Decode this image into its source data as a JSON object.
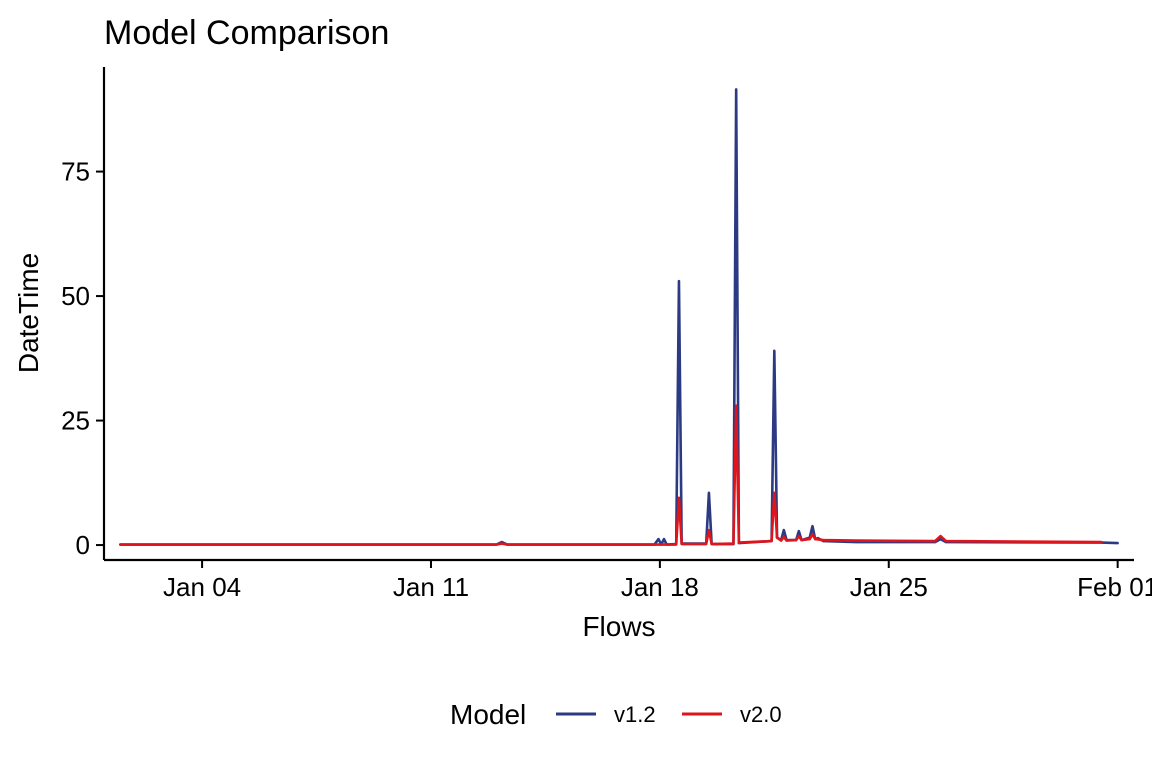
{
  "chart_data": {
    "type": "line",
    "title": "Model Comparison",
    "xlabel": "Flows",
    "ylabel": "DateTime",
    "x_axis_type": "date",
    "xlim": [
      "2024-01-01T00:00",
      "2024-02-01T12:00"
    ],
    "ylim": [
      -3,
      96
    ],
    "x_ticks": [
      {
        "value": "2024-01-04",
        "label": "Jan 04"
      },
      {
        "value": "2024-01-11",
        "label": "Jan 11"
      },
      {
        "value": "2024-01-18",
        "label": "Jan 18"
      },
      {
        "value": "2024-01-25",
        "label": "Jan 25"
      },
      {
        "value": "2024-02-01",
        "label": "Feb 01"
      }
    ],
    "y_ticks": [
      {
        "value": 0,
        "label": "0"
      },
      {
        "value": 25,
        "label": "25"
      },
      {
        "value": 50,
        "label": "50"
      },
      {
        "value": 75,
        "label": "75"
      }
    ],
    "grid": false,
    "legend": {
      "title": "Model",
      "placement": "bottom"
    },
    "series": [
      {
        "name": "v1.2",
        "color": "#2b3a83",
        "points": [
          [
            "2024-01-01T12:00",
            0.1
          ],
          [
            "2024-01-13T00:00",
            0.1
          ],
          [
            "2024-01-13T04:00",
            0.6
          ],
          [
            "2024-01-13T08:00",
            0.1
          ],
          [
            "2024-01-17T20:00",
            0.1
          ],
          [
            "2024-01-17T23:00",
            1.2
          ],
          [
            "2024-01-18T01:00",
            0.1
          ],
          [
            "2024-01-18T03:00",
            1.2
          ],
          [
            "2024-01-18T05:00",
            0.1
          ],
          [
            "2024-01-18T12:00",
            0.2
          ],
          [
            "2024-01-18T14:00",
            53
          ],
          [
            "2024-01-18T16:00",
            0.3
          ],
          [
            "2024-01-19T10:00",
            0.3
          ],
          [
            "2024-01-19T12:00",
            10.5
          ],
          [
            "2024-01-19T14:00",
            0.2
          ],
          [
            "2024-01-20T06:00",
            0.2
          ],
          [
            "2024-01-20T08:00",
            91.5
          ],
          [
            "2024-01-20T10:00",
            0.4
          ],
          [
            "2024-01-21T10:00",
            0.8
          ],
          [
            "2024-01-21T12:00",
            39
          ],
          [
            "2024-01-21T14:00",
            1.5
          ],
          [
            "2024-01-21T17:00",
            1.0
          ],
          [
            "2024-01-21T19:00",
            3.0
          ],
          [
            "2024-01-21T21:00",
            1.0
          ],
          [
            "2024-01-22T04:00",
            1.0
          ],
          [
            "2024-01-22T06:00",
            2.8
          ],
          [
            "2024-01-22T08:00",
            1.0
          ],
          [
            "2024-01-22T14:00",
            1.5
          ],
          [
            "2024-01-22T16:00",
            3.8
          ],
          [
            "2024-01-22T18:00",
            1.2
          ],
          [
            "2024-01-22T20:00",
            1.4
          ],
          [
            "2024-01-23T00:00",
            0.8
          ],
          [
            "2024-01-24T00:00",
            0.6
          ],
          [
            "2024-01-26T10:00",
            0.6
          ],
          [
            "2024-01-26T14:00",
            1.2
          ],
          [
            "2024-01-26T18:00",
            0.6
          ],
          [
            "2024-01-31T12:00",
            0.5
          ],
          [
            "2024-02-01T00:00",
            0.4
          ]
        ]
      },
      {
        "name": "v2.0",
        "color": "#e0151c",
        "points": [
          [
            "2024-01-01T12:00",
            0.1
          ],
          [
            "2024-01-13T00:00",
            0.1
          ],
          [
            "2024-01-13T04:00",
            0.3
          ],
          [
            "2024-01-13T08:00",
            0.1
          ],
          [
            "2024-01-18T12:00",
            0.1
          ],
          [
            "2024-01-18T14:00",
            9.5
          ],
          [
            "2024-01-18T16:00",
            0.2
          ],
          [
            "2024-01-19T10:00",
            0.2
          ],
          [
            "2024-01-19T12:00",
            3
          ],
          [
            "2024-01-19T14:00",
            0.2
          ],
          [
            "2024-01-20T06:00",
            0.3
          ],
          [
            "2024-01-20T08:00",
            28
          ],
          [
            "2024-01-20T10:00",
            0.5
          ],
          [
            "2024-01-21T10:00",
            0.8
          ],
          [
            "2024-01-21T12:00",
            10.5
          ],
          [
            "2024-01-21T14:00",
            1.5
          ],
          [
            "2024-01-21T17:00",
            0.9
          ],
          [
            "2024-01-21T19:00",
            1.6
          ],
          [
            "2024-01-21T21:00",
            0.9
          ],
          [
            "2024-01-22T04:00",
            1.0
          ],
          [
            "2024-01-22T06:00",
            1.8
          ],
          [
            "2024-01-22T08:00",
            1.0
          ],
          [
            "2024-01-22T14:00",
            1.2
          ],
          [
            "2024-01-22T16:00",
            2.2
          ],
          [
            "2024-01-22T18:00",
            1.2
          ],
          [
            "2024-01-23T00:00",
            1.0
          ],
          [
            "2024-01-24T00:00",
            0.9
          ],
          [
            "2024-01-26T10:00",
            0.8
          ],
          [
            "2024-01-26T14:00",
            1.8
          ],
          [
            "2024-01-26T18:00",
            0.8
          ],
          [
            "2024-01-31T12:00",
            0.6
          ]
        ]
      }
    ]
  }
}
